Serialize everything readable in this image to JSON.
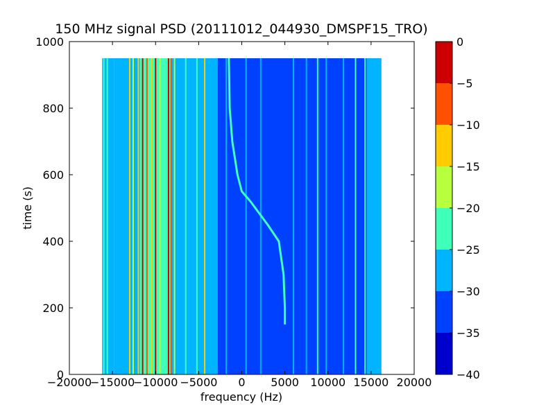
{
  "chart_data": {
    "type": "heatmap",
    "title": "150 MHz signal PSD (20111012_044930_DMSPF15_TRO)",
    "xlabel": "frequency (Hz)",
    "ylabel": "time (s)",
    "xlim": [
      -20000,
      20000
    ],
    "ylim": [
      0,
      1000
    ],
    "x_ticks": [
      -20000,
      -15000,
      -10000,
      -5000,
      0,
      5000,
      10000,
      15000,
      20000
    ],
    "x_tick_labels": [
      "−20000",
      "−15000",
      "−10000",
      "−5000",
      "0",
      "5000",
      "10000",
      "15000",
      "20000"
    ],
    "y_ticks": [
      0,
      200,
      400,
      600,
      800,
      1000
    ],
    "y_tick_labels": [
      "0",
      "200",
      "400",
      "600",
      "800",
      "1000"
    ],
    "data_extent": {
      "x": [
        -16200,
        16200
      ],
      "y": [
        0,
        950
      ]
    },
    "colorbar": {
      "range": [
        -40,
        0
      ],
      "ticks": [
        0,
        -5,
        -10,
        -15,
        -20,
        -25,
        -30,
        -35,
        -40
      ],
      "tick_labels": [
        "0",
        "−5",
        "−10",
        "−15",
        "−20",
        "−25",
        "−30",
        "−35",
        "−40"
      ],
      "levels": [
        {
          "from": -40,
          "to": -35,
          "color": "#0000cc"
        },
        {
          "from": -35,
          "to": -30,
          "color": "#0040ff"
        },
        {
          "from": -30,
          "to": -25,
          "color": "#00b4ff"
        },
        {
          "from": -25,
          "to": -20,
          "color": "#40ffb8"
        },
        {
          "from": -20,
          "to": -15,
          "color": "#b8ff40"
        },
        {
          "from": -15,
          "to": -10,
          "color": "#ffcc00"
        },
        {
          "from": -10,
          "to": -5,
          "color": "#ff5000"
        },
        {
          "from": -5,
          "to": 0,
          "color": "#cc0000"
        }
      ]
    },
    "background_regions": [
      {
        "x": [
          -16200,
          -14800
        ],
        "level": -27
      },
      {
        "x": [
          -14800,
          -11800
        ],
        "level": -27
      },
      {
        "x": [
          -11800,
          -8200
        ],
        "level": -22
      },
      {
        "x": [
          -8200,
          -6000
        ],
        "level": -27
      },
      {
        "x": [
          -6000,
          -2800
        ],
        "level": -27
      },
      {
        "x": [
          -2800,
          3500
        ],
        "level": -32
      },
      {
        "x": [
          3500,
          9000
        ],
        "level": -32
      },
      {
        "x": [
          9000,
          14500
        ],
        "level": -32
      },
      {
        "x": [
          14500,
          16200
        ],
        "level": -27
      }
    ],
    "vertical_lines": [
      {
        "x": -16000,
        "level": -22
      },
      {
        "x": -15600,
        "level": -22
      },
      {
        "x": -13000,
        "level": -12
      },
      {
        "x": -12600,
        "level": -17
      },
      {
        "x": -12000,
        "level": -12
      },
      {
        "x": -11500,
        "level": -2
      },
      {
        "x": -11000,
        "level": -7
      },
      {
        "x": -10500,
        "level": -12
      },
      {
        "x": -10000,
        "level": -2
      },
      {
        "x": -9500,
        "level": -17
      },
      {
        "x": -8500,
        "level": -2
      },
      {
        "x": -8200,
        "level": -7
      },
      {
        "x": -7800,
        "level": -17
      },
      {
        "x": -6500,
        "level": -22
      },
      {
        "x": -5200,
        "level": -22
      },
      {
        "x": -4300,
        "level": -12
      },
      {
        "x": -3400,
        "level": -27
      },
      {
        "x": -1800,
        "level": -27
      },
      {
        "x": 500,
        "level": -27
      },
      {
        "x": 2200,
        "level": -27
      },
      {
        "x": 6000,
        "level": -27
      },
      {
        "x": 7500,
        "level": -27
      },
      {
        "x": 8800,
        "level": -22
      },
      {
        "x": 9800,
        "level": -27
      },
      {
        "x": 11800,
        "level": -27
      },
      {
        "x": 13200,
        "level": -22
      },
      {
        "x": 14300,
        "level": -22
      }
    ],
    "doppler_trace": {
      "level": -22,
      "points": [
        {
          "x": 5000,
          "y": 150
        },
        {
          "x": 5000,
          "y": 200
        },
        {
          "x": 4850,
          "y": 300
        },
        {
          "x": 4300,
          "y": 400
        },
        {
          "x": 3000,
          "y": 450
        },
        {
          "x": 1000,
          "y": 520
        },
        {
          "x": 0,
          "y": 550
        },
        {
          "x": -500,
          "y": 600
        },
        {
          "x": -1100,
          "y": 700
        },
        {
          "x": -1400,
          "y": 800
        },
        {
          "x": -1500,
          "y": 950
        }
      ]
    }
  }
}
